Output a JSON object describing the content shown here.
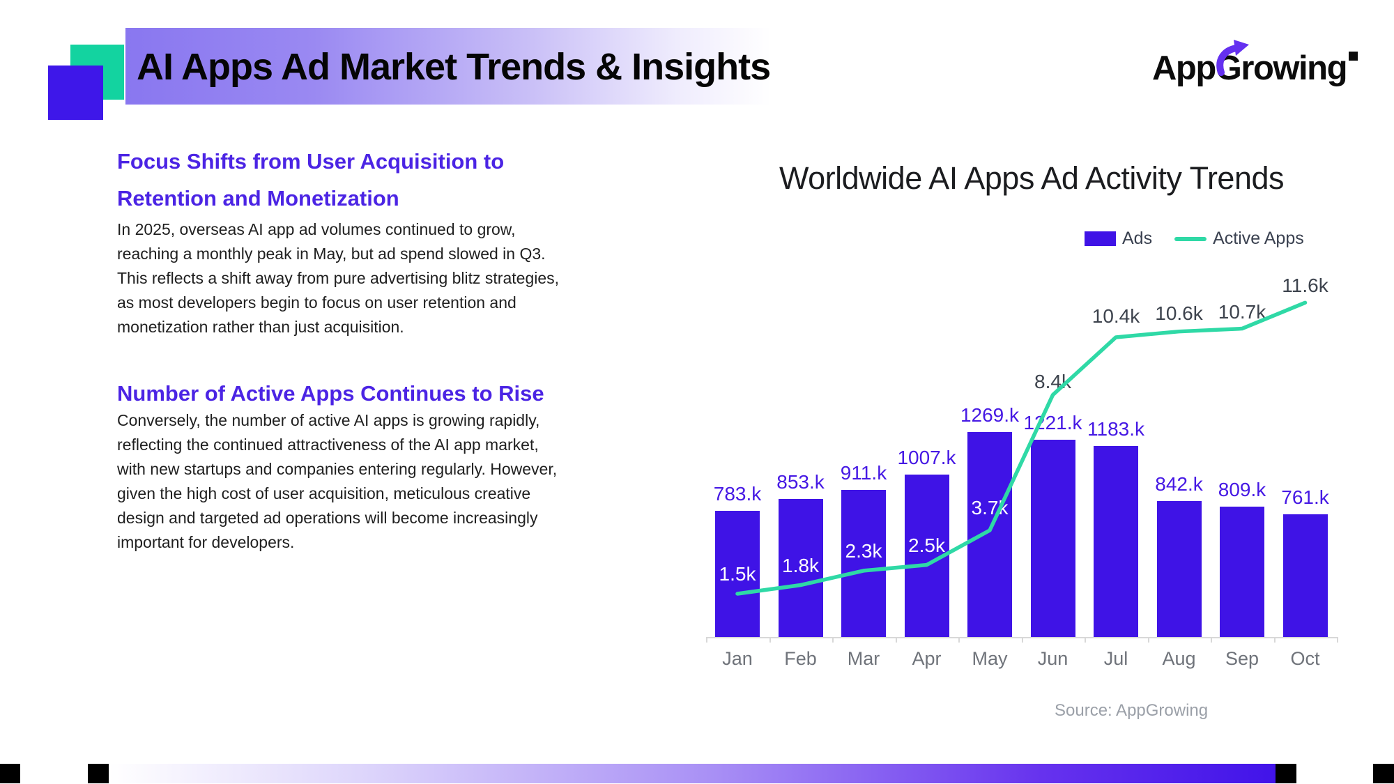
{
  "slide": {
    "title": "AI Apps Ad Market Trends & Insights",
    "brand": {
      "left": "App",
      "g": "G",
      "right": "rowing"
    },
    "source": "Source: AppGrowing"
  },
  "left_column": {
    "heading1": [
      "Focus Shifts from User Acquisition to",
      "Retention and Monetization"
    ],
    "para1": [
      "In 2025, overseas AI app ad volumes continued to grow,",
      "reaching a monthly peak in May, but ad spend slowed in Q3.",
      "This reflects a shift away from pure advertising blitz strategies,",
      "as most developers begin to focus on user retention and",
      "monetization rather than just acquisition."
    ],
    "heading2": "Number of Active Apps Continues to Rise",
    "para2": [
      "Conversely, the number of active AI apps is growing rapidly,",
      "reflecting the continued attractiveness of the AI app market,",
      "with new startups and companies entering regularly. However,",
      "given the high cost of user acquisition, meticulous creative",
      "design and targeted ad operations will become increasingly",
      "important for developers."
    ]
  },
  "chart_data": {
    "type": "bar",
    "title": "Worldwide AI Apps Ad Activity Trends",
    "categories": [
      "Jan",
      "Feb",
      "Mar",
      "Apr",
      "May",
      "Jun",
      "Jul",
      "Aug",
      "Sep",
      "Oct"
    ],
    "series": [
      {
        "name": "Ads",
        "kind": "bar",
        "unit": "k",
        "values": [
          783,
          853,
          911,
          1007,
          1269,
          1221,
          1183,
          842,
          809,
          761
        ],
        "labels": [
          "783.k",
          "853.k",
          "911.k",
          "1007.k",
          "1269.k",
          "1221.k",
          "1183.k",
          "842.k",
          "809.k",
          "761.k"
        ],
        "color": "#3f13e6"
      },
      {
        "name": "Active Apps",
        "kind": "line",
        "unit": "k",
        "values": [
          1.5,
          1.8,
          2.3,
          2.5,
          3.7,
          8.4,
          10.4,
          10.6,
          10.7,
          11.6
        ],
        "labels": [
          "1.5k",
          "1.8k",
          "2.3k",
          "2.5k",
          "3.7k",
          "8.4k",
          "10.4k",
          "10.6k",
          "10.7k",
          "11.6k"
        ],
        "color": "#2fd9a6"
      }
    ],
    "legend_position": "top-right",
    "grid": false,
    "source": "Source: AppGrowing"
  }
}
